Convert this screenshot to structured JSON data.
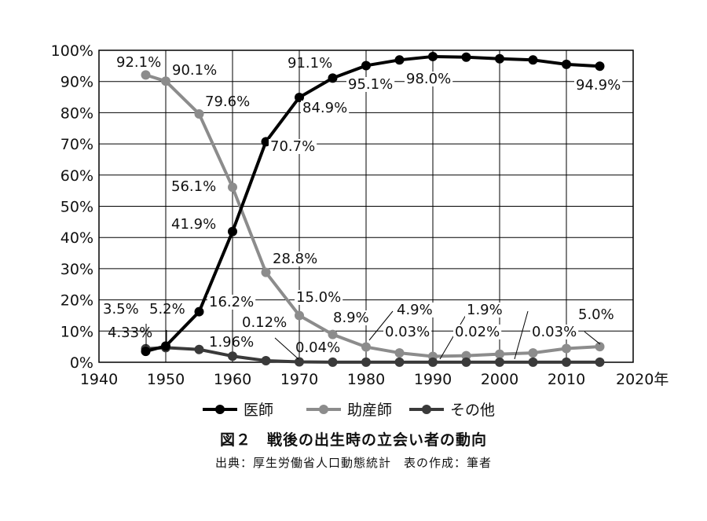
{
  "chart_data": {
    "type": "line",
    "title": "図２　戦後の出生時の立会い者の動向",
    "source": "出典：厚生労働省人口動態統計　表の作成：筆者",
    "x_tick_labels": [
      "1940",
      "1950",
      "1960",
      "1970",
      "1980",
      "1990",
      "2000",
      "2010",
      "2020年"
    ],
    "y_tick_labels": [
      "0%",
      "10%",
      "20%",
      "30%",
      "40%",
      "50%",
      "60%",
      "70%",
      "80%",
      "90%",
      "100%"
    ],
    "xlim": [
      1940,
      2020
    ],
    "ylim": [
      0,
      100
    ],
    "grid": true,
    "legend_placement": "bottom",
    "series": [
      {
        "name": "医師",
        "color": "#000000",
        "x": [
          1947,
          1950,
          1955,
          1960,
          1965,
          1970,
          1975,
          1980,
          1985,
          1990,
          1995,
          2000,
          2005,
          2010,
          2015
        ],
        "y": [
          3.5,
          5.2,
          16.2,
          41.9,
          70.7,
          84.9,
          91.1,
          95.1,
          96.9,
          98.0,
          97.8,
          97.3,
          96.9,
          95.5,
          94.9
        ]
      },
      {
        "name": "助産師",
        "color": "#8c8c8c",
        "x": [
          1947,
          1950,
          1955,
          1960,
          1965,
          1970,
          1975,
          1980,
          1985,
          1990,
          1995,
          2000,
          2005,
          2010,
          2015
        ],
        "y": [
          92.1,
          90.1,
          79.6,
          56.1,
          28.8,
          15.0,
          8.9,
          4.9,
          3.0,
          1.9,
          2.1,
          2.6,
          3.0,
          4.4,
          5.0
        ]
      },
      {
        "name": "その他",
        "color": "#3a3a3a",
        "x": [
          1947,
          1950,
          1955,
          1960,
          1965,
          1970,
          1975,
          1980,
          1985,
          1990,
          1995,
          2000,
          2005,
          2010,
          2015
        ],
        "y": [
          4.33,
          4.7,
          4.1,
          1.96,
          0.5,
          0.12,
          0.04,
          0.03,
          0.03,
          0.02,
          0.02,
          0.02,
          0.03,
          0.03,
          0.03
        ]
      }
    ],
    "annotations": [
      {
        "text": "92.1%"
      },
      {
        "text": "90.1%"
      },
      {
        "text": "79.6%"
      },
      {
        "text": "56.1%"
      },
      {
        "text": "41.9%"
      },
      {
        "text": "70.7%"
      },
      {
        "text": "28.8%"
      },
      {
        "text": "84.9%"
      },
      {
        "text": "91.1%"
      },
      {
        "text": "95.1%"
      },
      {
        "text": "98.0%"
      },
      {
        "text": "94.9%"
      },
      {
        "text": "16.2%"
      },
      {
        "text": "15.0%"
      },
      {
        "text": "3.5%"
      },
      {
        "text": "5.2%"
      },
      {
        "text": "4.33%"
      },
      {
        "text": "1.96%"
      },
      {
        "text": "0.12%"
      },
      {
        "text": "0.04%"
      },
      {
        "text": "8.9%"
      },
      {
        "text": "4.9%"
      },
      {
        "text": "0.03%"
      },
      {
        "text": "1.9%"
      },
      {
        "text": "0.02%"
      },
      {
        "text": "0.03%"
      },
      {
        "text": "5.0%"
      }
    ]
  }
}
